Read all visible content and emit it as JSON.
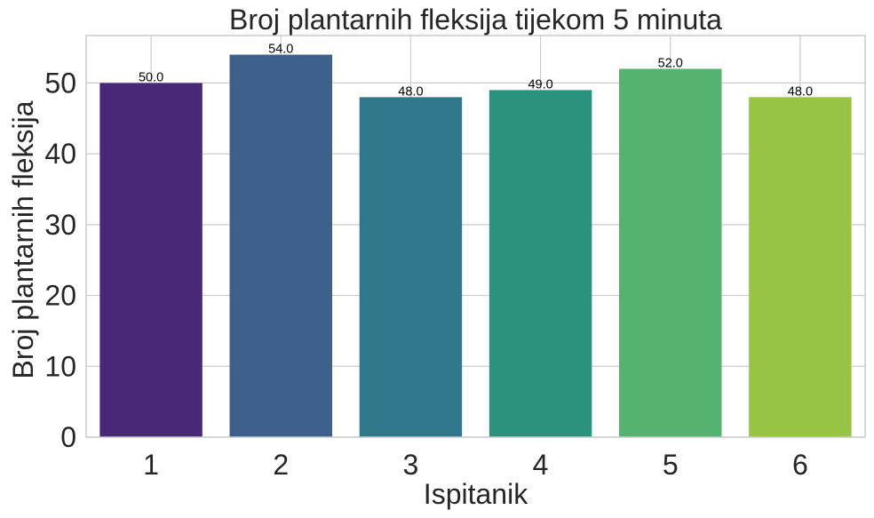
{
  "chart_data": {
    "type": "bar",
    "title": "Broj plantarnih fleksija tijekom 5 minuta",
    "xlabel": "Ispitanik",
    "ylabel": "Broj plantarnih fleksija",
    "categories": [
      "1",
      "2",
      "3",
      "4",
      "5",
      "6"
    ],
    "values": [
      50,
      54,
      48,
      49,
      52,
      48
    ],
    "value_labels": [
      "50.0",
      "54.0",
      "48.0",
      "49.0",
      "52.0",
      "48.0"
    ],
    "yticks": [
      "0",
      "10",
      "20",
      "30",
      "40",
      "50"
    ],
    "ytick_values": [
      0,
      10,
      20,
      30,
      40,
      50
    ],
    "ylim": [
      0,
      56.7
    ],
    "grid": true,
    "legend": "none",
    "colors": [
      "#482878",
      "#3e5f8a",
      "#31778b",
      "#2a927d",
      "#55b26f",
      "#98c445"
    ]
  }
}
